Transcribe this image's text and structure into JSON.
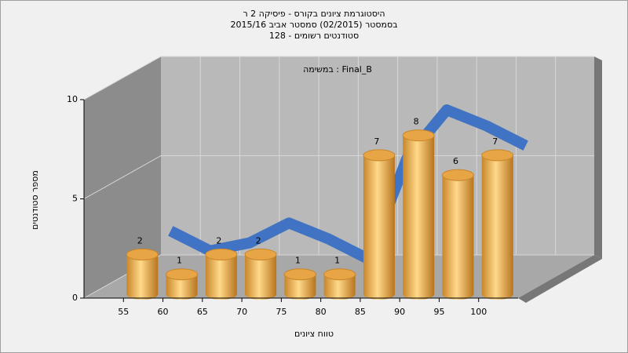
{
  "chart_data": {
    "type": "bar",
    "title": [
      "היסטוגרמת ציונים בקורס - פיסיקה 2 ר",
      "בסמסטר  (02/2015)  סמסטר אביב 2015/16",
      "סטודנטים רשומים - 128"
    ],
    "annotation": "במשימה : Final_B",
    "x_label": "טווח ציונים",
    "y_label": "מספר סטודנטים",
    "categories": [
      "55",
      "60",
      "65",
      "70",
      "75",
      "80",
      "85",
      "90",
      "95",
      "100"
    ],
    "series": [
      {
        "type": "bar",
        "color": "#e8a545",
        "values": [
          2,
          1,
          2,
          2,
          1,
          1,
          7,
          8,
          6,
          7
        ]
      },
      {
        "type": "line",
        "color": "#3a6fc4",
        "values": [
          2.0,
          1.0,
          1.4,
          2.4,
          1.6,
          0.6,
          5.7,
          8.1,
          7.3,
          6.3
        ]
      }
    ],
    "ylim": [
      0,
      10
    ],
    "yticks": [
      0,
      5,
      10
    ],
    "grid": true
  }
}
